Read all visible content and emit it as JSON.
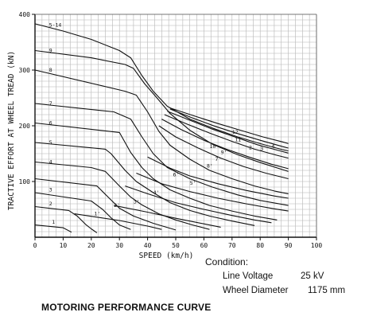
{
  "caption": "MOTORING PERFORMANCE CURVE",
  "condition": {
    "title": "Condition:",
    "voltage_label": "Line Voltage",
    "voltage_value": "25 kV",
    "wheel_label": "Wheel Diameter",
    "wheel_value": "1175 mm"
  },
  "chart_data": {
    "type": "line",
    "xlabel": "SPEED (km/h)",
    "ylabel": "TRACTIVE EFFORT AT WHEEL TREAD (kN)",
    "xlim": [
      0,
      100
    ],
    "ylim": [
      0,
      400
    ],
    "xticks": [
      0,
      10,
      20,
      30,
      40,
      50,
      60,
      70,
      80,
      90,
      100
    ],
    "yticks": [
      100,
      200,
      300,
      400
    ],
    "grid": true,
    "grid_step": {
      "x": 2.5,
      "y": 10
    },
    "line_color": "#111111",
    "grid_color": "#b5b5b5",
    "series": [
      {
        "name": "1",
        "points": [
          [
            0,
            22
          ],
          [
            10,
            17
          ],
          [
            13,
            9
          ]
        ]
      },
      {
        "name": "2",
        "points": [
          [
            0,
            55
          ],
          [
            12,
            48
          ],
          [
            15,
            38
          ],
          [
            18,
            23
          ],
          [
            20,
            15
          ],
          [
            22,
            8
          ]
        ]
      },
      {
        "name": "3",
        "points": [
          [
            0,
            80
          ],
          [
            20,
            65
          ],
          [
            24,
            50
          ],
          [
            27,
            35
          ],
          [
            30,
            22
          ],
          [
            34,
            14
          ]
        ]
      },
      {
        "name": "1'",
        "points": [
          [
            14,
            42
          ],
          [
            30,
            30
          ],
          [
            40,
            20
          ],
          [
            45,
            14
          ]
        ]
      },
      {
        "name": "2'",
        "points": [
          [
            0,
            105
          ],
          [
            22,
            92
          ],
          [
            26,
            72
          ],
          [
            30,
            52
          ],
          [
            35,
            38
          ],
          [
            42,
            25
          ],
          [
            50,
            13
          ]
        ]
      },
      {
        "name": "4",
        "points": [
          [
            0,
            135
          ],
          [
            20,
            125
          ],
          [
            25,
            118
          ],
          [
            30,
            92
          ],
          [
            34,
            72
          ],
          [
            38,
            58
          ],
          [
            44,
            42
          ],
          [
            50,
            31
          ],
          [
            56,
            22
          ],
          [
            62,
            14
          ]
        ]
      },
      {
        "name": "3'",
        "points": [
          [
            28,
            57
          ],
          [
            40,
            45
          ],
          [
            50,
            34
          ],
          [
            60,
            24
          ],
          [
            66,
            18
          ]
        ]
      },
      {
        "name": "5",
        "points": [
          [
            0,
            170
          ],
          [
            25,
            158
          ],
          [
            27,
            150
          ],
          [
            32,
            120
          ],
          [
            36,
            100
          ],
          [
            42,
            80
          ],
          [
            48,
            62
          ],
          [
            55,
            48
          ],
          [
            62,
            38
          ],
          [
            70,
            29
          ],
          [
            78,
            21
          ]
        ]
      },
      {
        "name": "4'",
        "points": [
          [
            32,
            92
          ],
          [
            40,
            78
          ],
          [
            50,
            62
          ],
          [
            60,
            50
          ],
          [
            70,
            39
          ],
          [
            78,
            31
          ],
          [
            84,
            26
          ]
        ]
      },
      {
        "name": "6",
        "points": [
          [
            0,
            205
          ],
          [
            30,
            188
          ],
          [
            34,
            152
          ],
          [
            38,
            125
          ],
          [
            42,
            105
          ],
          [
            48,
            85
          ],
          [
            55,
            70
          ],
          [
            62,
            57
          ],
          [
            70,
            47
          ],
          [
            78,
            38
          ],
          [
            86,
            31
          ]
        ]
      },
      {
        "name": "5'",
        "points": [
          [
            36,
            115
          ],
          [
            45,
            96
          ],
          [
            55,
            82
          ],
          [
            65,
            70
          ],
          [
            75,
            60
          ],
          [
            85,
            51
          ],
          [
            90,
            47
          ]
        ]
      },
      {
        "name": "7",
        "points": [
          [
            0,
            240
          ],
          [
            28,
            225
          ],
          [
            34,
            212
          ],
          [
            38,
            180
          ],
          [
            42,
            150
          ],
          [
            47,
            125
          ],
          [
            55,
            105
          ],
          [
            63,
            90
          ],
          [
            72,
            76
          ],
          [
            80,
            66
          ],
          [
            90,
            57
          ]
        ]
      },
      {
        "name": "6'",
        "points": [
          [
            40,
            144
          ],
          [
            48,
            124
          ],
          [
            55,
            110
          ],
          [
            65,
            96
          ],
          [
            75,
            84
          ],
          [
            85,
            74
          ],
          [
            90,
            70
          ]
        ]
      },
      {
        "name": "8",
        "points": [
          [
            0,
            300
          ],
          [
            32,
            262
          ],
          [
            36,
            255
          ],
          [
            40,
            225
          ],
          [
            44,
            190
          ],
          [
            48,
            165
          ],
          [
            55,
            140
          ],
          [
            62,
            120
          ],
          [
            70,
            105
          ],
          [
            78,
            92
          ],
          [
            85,
            83
          ],
          [
            90,
            78
          ]
        ]
      },
      {
        "name": "7'",
        "points": [
          [
            44,
            200
          ],
          [
            50,
            180
          ],
          [
            58,
            160
          ],
          [
            66,
            142
          ],
          [
            74,
            127
          ],
          [
            82,
            115
          ],
          [
            90,
            105
          ]
        ]
      },
      {
        "name": "8'",
        "points": [
          [
            45,
            212
          ],
          [
            52,
            193
          ],
          [
            60,
            174
          ],
          [
            68,
            158
          ],
          [
            76,
            144
          ],
          [
            84,
            131
          ],
          [
            90,
            123
          ]
        ]
      },
      {
        "name": "9",
        "points": [
          [
            0,
            335
          ],
          [
            20,
            322
          ],
          [
            32,
            310
          ],
          [
            35,
            303
          ],
          [
            39,
            275
          ],
          [
            43,
            252
          ],
          [
            48,
            222
          ],
          [
            55,
            192
          ],
          [
            63,
            167
          ],
          [
            72,
            148
          ],
          [
            80,
            134
          ],
          [
            90,
            118
          ]
        ]
      },
      {
        "name": "9'",
        "points": [
          [
            46,
            220
          ],
          [
            54,
            203
          ],
          [
            62,
            187
          ],
          [
            70,
            172
          ],
          [
            78,
            158
          ],
          [
            86,
            147
          ],
          [
            90,
            142
          ]
        ]
      },
      {
        "name": "10",
        "points": [
          [
            47,
            226
          ],
          [
            55,
            210
          ],
          [
            63,
            194
          ],
          [
            71,
            180
          ],
          [
            79,
            166
          ],
          [
            87,
            155
          ],
          [
            90,
            151
          ]
        ]
      },
      {
        "name": "11",
        "points": [
          [
            48,
            230
          ],
          [
            56,
            214
          ],
          [
            64,
            199
          ],
          [
            72,
            186
          ],
          [
            80,
            174
          ],
          [
            87,
            164
          ],
          [
            90,
            160
          ]
        ]
      },
      {
        "name": "12",
        "points": [
          [
            48,
            232
          ],
          [
            57,
            217
          ],
          [
            65,
            204
          ],
          [
            73,
            192
          ],
          [
            81,
            180
          ],
          [
            88,
            171
          ],
          [
            90,
            168
          ]
        ]
      },
      {
        "name": "5-14",
        "points": [
          [
            0,
            383
          ],
          [
            10,
            370
          ],
          [
            20,
            355
          ],
          [
            30,
            335
          ],
          [
            34,
            322
          ],
          [
            38,
            290
          ],
          [
            42,
            262
          ],
          [
            47,
            235
          ],
          [
            55,
            212
          ],
          [
            63,
            196
          ],
          [
            72,
            180
          ],
          [
            80,
            168
          ],
          [
            88,
            157
          ],
          [
            90,
            155
          ]
        ]
      }
    ],
    "notch_labels": [
      {
        "text": "5-14",
        "x": 5,
        "y": 378
      },
      {
        "text": "9",
        "x": 5,
        "y": 332
      },
      {
        "text": "8",
        "x": 5,
        "y": 297
      },
      {
        "text": "7",
        "x": 5,
        "y": 237
      },
      {
        "text": "6",
        "x": 5,
        "y": 202
      },
      {
        "text": "5",
        "x": 5,
        "y": 167
      },
      {
        "text": "4",
        "x": 5,
        "y": 132
      },
      {
        "text": "3",
        "x": 5,
        "y": 82
      },
      {
        "text": "2",
        "x": 5,
        "y": 57
      },
      {
        "text": "1",
        "x": 6,
        "y": 24
      },
      {
        "text": "1'",
        "x": 21,
        "y": 39
      },
      {
        "text": "2'",
        "x": 28,
        "y": 54
      },
      {
        "text": "3'",
        "x": 35,
        "y": 61
      },
      {
        "text": "4'",
        "x": 42,
        "y": 77
      },
      {
        "text": "5'",
        "x": 55,
        "y": 94
      },
      {
        "text": "6'",
        "x": 49,
        "y": 109
      },
      {
        "text": "7'",
        "x": 64,
        "y": 137
      },
      {
        "text": "8'",
        "x": 61,
        "y": 125
      },
      {
        "text": "9'",
        "x": 66,
        "y": 149
      },
      {
        "text": "10",
        "x": 62,
        "y": 160
      },
      {
        "text": "11",
        "x": 71,
        "y": 172
      },
      {
        "text": "12",
        "x": 70,
        "y": 186
      },
      {
        "text": "2",
        "x": 76,
        "y": 158
      },
      {
        "text": "3",
        "x": 80,
        "y": 156
      },
      {
        "text": "4",
        "x": 84,
        "y": 160
      }
    ]
  }
}
